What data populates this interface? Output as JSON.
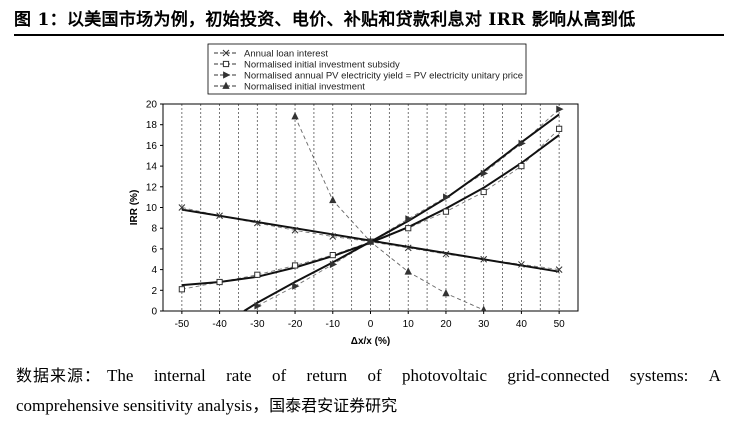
{
  "figure": {
    "title": "图 1：以美国市场为例，初始投资、电价、补贴和贷款利息对 IRR 影响从高到低"
  },
  "source": {
    "label": "数据来源：",
    "line1_words": [
      "The",
      "internal",
      "rate",
      "of",
      "return",
      "of",
      "photovoltaic",
      "grid-connected",
      "systems:",
      "A"
    ],
    "line2_text": "comprehensive sensitivity analysis，",
    "line2_cn": "国泰君安证券研究"
  },
  "chart_data": {
    "type": "line",
    "xlabel": "Δx/x (%)",
    "ylabel": "IRR (%)",
    "xlim": [
      -55,
      55
    ],
    "ylim": [
      0,
      20
    ],
    "x_ticks": [
      -50,
      -40,
      -30,
      -20,
      -10,
      0,
      10,
      20,
      30,
      40,
      50
    ],
    "y_ticks": [
      0,
      2,
      4,
      6,
      8,
      10,
      12,
      14,
      16,
      18,
      20
    ],
    "vertical_grid_step": 5,
    "grid": "vertical dashed",
    "legend_position": "top",
    "series": [
      {
        "name": "Annual loan interest",
        "marker": "x",
        "points": [
          [
            -50,
            10.0
          ],
          [
            -40,
            9.2
          ],
          [
            -30,
            8.5
          ],
          [
            -20,
            7.8
          ],
          [
            -10,
            7.2
          ],
          [
            0,
            6.7
          ],
          [
            10,
            6.1
          ],
          [
            20,
            5.5
          ],
          [
            30,
            5.0
          ],
          [
            40,
            4.5
          ],
          [
            50,
            4.0
          ]
        ],
        "fit": [
          [
            -50,
            9.8
          ],
          [
            50,
            3.8
          ]
        ]
      },
      {
        "name": "Normalised initial investment subsidy",
        "marker": "square",
        "points": [
          [
            -50,
            2.1
          ],
          [
            -40,
            2.8
          ],
          [
            -30,
            3.5
          ],
          [
            -20,
            4.4
          ],
          [
            -10,
            5.4
          ],
          [
            0,
            6.7
          ],
          [
            10,
            8.0
          ],
          [
            20,
            9.6
          ],
          [
            30,
            11.5
          ],
          [
            40,
            14.0
          ],
          [
            50,
            17.6
          ]
        ],
        "fit": [
          [
            -50,
            2.5
          ],
          [
            -40,
            2.8
          ],
          [
            -30,
            3.3
          ],
          [
            -20,
            4.2
          ],
          [
            -10,
            5.3
          ],
          [
            0,
            6.6
          ],
          [
            10,
            8.1
          ],
          [
            20,
            9.9
          ],
          [
            30,
            11.9
          ],
          [
            40,
            14.3
          ],
          [
            50,
            17.0
          ]
        ]
      },
      {
        "name": "Normalised annual PV electricity yield = PV electricity unitary price",
        "marker": "triangle-right",
        "points": [
          [
            -30,
            0.5
          ],
          [
            -20,
            2.4
          ],
          [
            -10,
            4.5
          ],
          [
            0,
            6.7
          ],
          [
            10,
            8.9
          ],
          [
            20,
            11.0
          ],
          [
            30,
            13.3
          ],
          [
            40,
            16.2
          ],
          [
            50,
            19.5
          ]
        ],
        "fit": [
          [
            -33.5,
            0
          ],
          [
            -30,
            0.8
          ],
          [
            -20,
            2.8
          ],
          [
            -10,
            4.7
          ],
          [
            0,
            6.7
          ],
          [
            10,
            8.7
          ],
          [
            20,
            10.9
          ],
          [
            30,
            13.5
          ],
          [
            40,
            16.3
          ],
          [
            50,
            19.0
          ]
        ]
      },
      {
        "name": "Normalised initial investment",
        "marker": "triangle",
        "dashed": true,
        "points": [
          [
            -20,
            18.8
          ],
          [
            -10,
            10.7
          ],
          [
            0,
            6.7
          ],
          [
            10,
            3.8
          ],
          [
            20,
            1.7
          ],
          [
            30,
            0.1
          ]
        ]
      }
    ]
  }
}
